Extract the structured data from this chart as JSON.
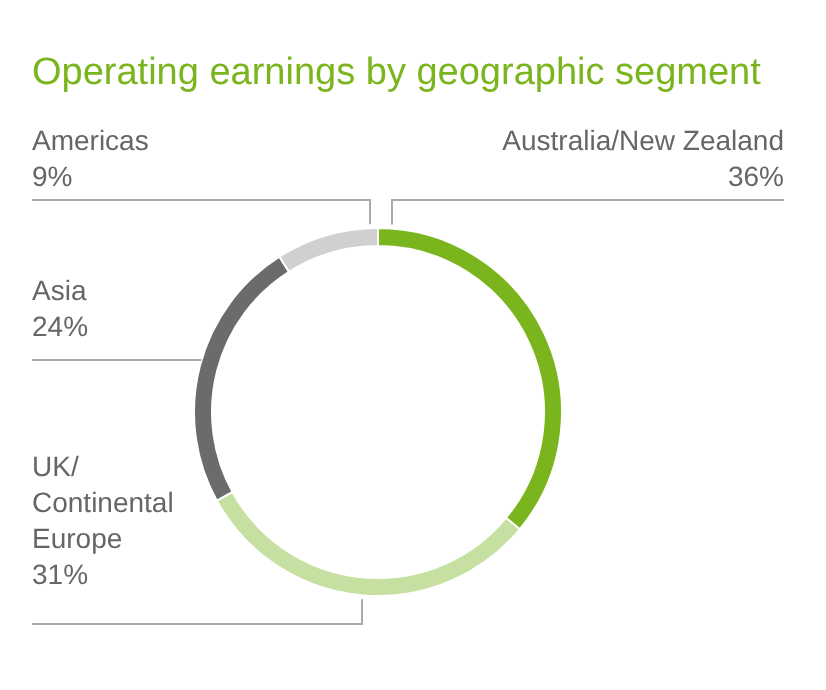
{
  "chart_data": {
    "type": "donut",
    "title": "Operating earnings by geographic segment",
    "categories": [
      "Australia/New Zealand",
      "UK/Continental Europe",
      "Asia",
      "Americas"
    ],
    "values": [
      36,
      31,
      24,
      9
    ],
    "value_labels": [
      "36%",
      "31%",
      "24%",
      "9%"
    ],
    "colors": [
      "#7ab51d",
      "#c5e0a0",
      "#6b6b6b",
      "#d0d0d0"
    ]
  }
}
